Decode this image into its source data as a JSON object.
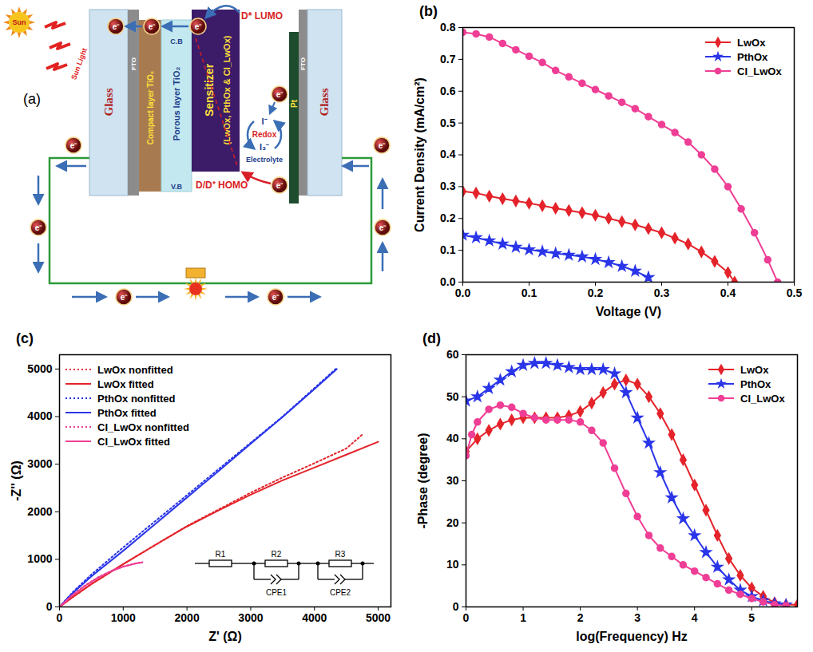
{
  "diagram": {
    "panel_label": "(a)",
    "sun": "Sun",
    "sunlight": "Sun Light",
    "glass": "Glass",
    "fto": "FTO",
    "compact": "Compact layer TiO₂",
    "porous": "Porous layer TiO₂",
    "sensitizer": "Sensitizer",
    "dyes": "(LwOx, PthOx & CI_LwOx)",
    "lumo": "D* LUMO",
    "homo": "D/D⁺ HOMO",
    "cb": "C.B",
    "vb": "V.B",
    "iodide": "I⁻",
    "redox": "Redox",
    "triiodide": "I₃⁻",
    "electrolyte": "Electrolyte",
    "pt": "Pt",
    "electron": "e⁻"
  },
  "chart_data": [
    {
      "type": "line",
      "panel_label": "(b)",
      "x_label": "Voltage (V)",
      "y_label": "Current Density (mA/cm²)",
      "xlim": [
        0,
        0.5
      ],
      "xticks": [
        {
          "value": 0,
          "label": "0.0"
        },
        {
          "value": 0.1,
          "label": "0.1"
        },
        {
          "value": 0.2,
          "label": "0.2"
        },
        {
          "value": 0.3,
          "label": "0.3"
        },
        {
          "value": 0.4,
          "label": "0.4"
        },
        {
          "value": 0.5,
          "label": "0.5"
        }
      ],
      "ylim": [
        0,
        0.8
      ],
      "yticks": [
        {
          "value": 0,
          "label": "0.0"
        },
        {
          "value": 0.1,
          "label": "0.1"
        },
        {
          "value": 0.2,
          "label": "0.2"
        },
        {
          "value": 0.3,
          "label": "0.3"
        },
        {
          "value": 0.4,
          "label": "0.4"
        },
        {
          "value": 0.5,
          "label": "0.5"
        },
        {
          "value": 0.6,
          "label": "0.6"
        },
        {
          "value": 0.7,
          "label": "0.7"
        },
        {
          "value": 0.8,
          "label": "0.8"
        }
      ],
      "grid": false,
      "legend": "top-right",
      "series": [
        {
          "name": "LwOx",
          "color": "#e4232a",
          "marker": "diamond",
          "line_style": "solid",
          "x": [
            0,
            0.02,
            0.04,
            0.06,
            0.08,
            0.1,
            0.12,
            0.14,
            0.16,
            0.18,
            0.2,
            0.22,
            0.24,
            0.26,
            0.28,
            0.3,
            0.32,
            0.34,
            0.36,
            0.38,
            0.4,
            0.41
          ],
          "values": [
            0.285,
            0.28,
            0.27,
            0.262,
            0.255,
            0.248,
            0.24,
            0.232,
            0.225,
            0.218,
            0.21,
            0.2,
            0.19,
            0.18,
            0.168,
            0.155,
            0.138,
            0.12,
            0.095,
            0.065,
            0.03,
            0
          ]
        },
        {
          "name": "PthOx",
          "color": "#2a35e8",
          "marker": "star",
          "line_style": "solid",
          "x": [
            0,
            0.02,
            0.04,
            0.06,
            0.08,
            0.1,
            0.12,
            0.14,
            0.16,
            0.18,
            0.2,
            0.22,
            0.24,
            0.26,
            0.28
          ],
          "values": [
            0.148,
            0.14,
            0.13,
            0.12,
            0.11,
            0.102,
            0.096,
            0.09,
            0.085,
            0.08,
            0.072,
            0.062,
            0.05,
            0.035,
            0.015
          ]
        },
        {
          "name": "CI_LwOx",
          "color": "#ef3e95",
          "marker": "circle",
          "line_style": "solid",
          "x": [
            0,
            0.02,
            0.04,
            0.06,
            0.08,
            0.1,
            0.12,
            0.14,
            0.16,
            0.18,
            0.2,
            0.22,
            0.24,
            0.26,
            0.28,
            0.3,
            0.32,
            0.34,
            0.36,
            0.38,
            0.4,
            0.42,
            0.44,
            0.46,
            0.475
          ],
          "values": [
            0.785,
            0.78,
            0.77,
            0.75,
            0.73,
            0.71,
            0.69,
            0.665,
            0.645,
            0.625,
            0.605,
            0.585,
            0.565,
            0.545,
            0.52,
            0.495,
            0.47,
            0.44,
            0.4,
            0.355,
            0.3,
            0.23,
            0.155,
            0.07,
            0
          ]
        }
      ]
    },
    {
      "type": "line",
      "panel_label": "(c)",
      "x_label": "Z' (Ω)",
      "y_label": "-Z'' (Ω)",
      "xlim": [
        0,
        5200
      ],
      "xticks": [
        0,
        1000,
        2000,
        3000,
        4000,
        5000
      ],
      "ylim": [
        0,
        5300
      ],
      "yticks": [
        0,
        1000,
        2000,
        3000,
        4000,
        5000
      ],
      "grid": false,
      "legend": "top-left",
      "circuit": [
        "R1",
        "R2",
        "CPE1",
        "R3",
        "CPE2"
      ],
      "series": [
        {
          "name": "LwOx nonfitted",
          "color": "#e4232a",
          "line_style": "dotted",
          "x": [
            0,
            200,
            500,
            1000,
            1500,
            2000,
            2500,
            3000,
            3500,
            4000,
            4500,
            4750
          ],
          "values": [
            0,
            200,
            480,
            900,
            1300,
            1700,
            2050,
            2400,
            2720,
            3020,
            3330,
            3620
          ]
        },
        {
          "name": "LwOx fitted",
          "color": "#e4232a",
          "line_style": "solid",
          "x": [
            0,
            200,
            500,
            1000,
            1500,
            2000,
            2500,
            3000,
            3500,
            4000,
            4500,
            5000
          ],
          "values": [
            0,
            200,
            480,
            900,
            1300,
            1690,
            2030,
            2360,
            2660,
            2930,
            3200,
            3470
          ]
        },
        {
          "name": "PthOx nonfitted",
          "color": "#2a35e8",
          "line_style": "dotted",
          "x": [
            0,
            200,
            500,
            1000,
            1500,
            2000,
            2500,
            3000,
            3500,
            4000,
            4350
          ],
          "values": [
            0,
            300,
            680,
            1250,
            1800,
            2350,
            2900,
            3450,
            4000,
            4600,
            5020
          ]
        },
        {
          "name": "PthOx fitted",
          "color": "#2a35e8",
          "line_style": "solid",
          "x": [
            0,
            200,
            500,
            1000,
            1500,
            2000,
            2500,
            3000,
            3500,
            4000,
            4350
          ],
          "values": [
            0,
            280,
            640,
            1180,
            1740,
            2300,
            2860,
            3430,
            3990,
            4580,
            5000
          ]
        },
        {
          "name": "CI_LwOx nonfitted",
          "color": "#ef3e95",
          "line_style": "dotted",
          "x": [
            0,
            200,
            400,
            600,
            800,
            1000,
            1200,
            1300
          ],
          "values": [
            0,
            250,
            450,
            620,
            750,
            850,
            920,
            940
          ]
        },
        {
          "name": "CI_LwOx fitted",
          "color": "#ef3e95",
          "line_style": "solid",
          "x": [
            0,
            200,
            400,
            600,
            800,
            1000,
            1200,
            1300
          ],
          "values": [
            0,
            240,
            440,
            610,
            745,
            845,
            915,
            935
          ]
        }
      ]
    },
    {
      "type": "line",
      "panel_label": "(d)",
      "x_label": "log(Frequency) Hz",
      "y_label": "-Phase (degree)",
      "xlim": [
        0,
        5.8
      ],
      "xticks": [
        0,
        1,
        2,
        3,
        4,
        5
      ],
      "ylim": [
        0,
        60
      ],
      "yticks": [
        0,
        10,
        20,
        30,
        40,
        50,
        60
      ],
      "grid": false,
      "legend": "top-right",
      "series": [
        {
          "name": "LwOx",
          "color": "#e4232a",
          "marker": "diamond",
          "line_style": "solid",
          "x": [
            0,
            0.2,
            0.4,
            0.6,
            0.8,
            1,
            1.2,
            1.4,
            1.6,
            1.8,
            2,
            2.2,
            2.4,
            2.6,
            2.8,
            3,
            3.2,
            3.4,
            3.6,
            3.8,
            4,
            4.2,
            4.4,
            4.6,
            4.8,
            5,
            5.2,
            5.4,
            5.6,
            5.8
          ],
          "values": [
            37,
            40,
            42,
            43.5,
            44.5,
            45,
            45,
            45,
            45,
            45.5,
            46.5,
            48.5,
            51,
            53,
            54,
            53,
            50,
            46,
            41,
            35,
            29,
            23,
            17,
            11.5,
            7.5,
            4.5,
            2.5,
            1,
            0.5,
            0.5
          ]
        },
        {
          "name": "PthOx",
          "color": "#2a35e8",
          "marker": "star",
          "line_style": "solid",
          "x": [
            0,
            0.2,
            0.4,
            0.6,
            0.8,
            1,
            1.2,
            1.4,
            1.6,
            1.8,
            2,
            2.2,
            2.4,
            2.6,
            2.8,
            3,
            3.2,
            3.4,
            3.6,
            3.8,
            4,
            4.2,
            4.4,
            4.6,
            4.8,
            5,
            5.2,
            5.4,
            5.6
          ],
          "values": [
            49,
            50,
            52,
            54,
            56,
            57.5,
            58,
            58,
            57.5,
            57,
            56.5,
            56.5,
            56.5,
            55.5,
            51,
            45,
            39,
            32,
            26,
            21,
            17,
            13,
            9.5,
            6.5,
            4,
            2.5,
            1.5,
            0.8,
            0.5
          ]
        },
        {
          "name": "CI_LwOx",
          "color": "#ef3e95",
          "marker": "circle",
          "line_style": "solid",
          "x": [
            0,
            0.1,
            0.2,
            0.4,
            0.6,
            0.8,
            1,
            1.2,
            1.4,
            1.6,
            1.8,
            2,
            2.2,
            2.4,
            2.6,
            2.8,
            3,
            3.2,
            3.4,
            3.6,
            3.8,
            4,
            4.2,
            4.4,
            4.6,
            4.8,
            5,
            5.2,
            5.4,
            5.6
          ],
          "values": [
            36,
            41,
            44,
            47,
            48,
            47.5,
            46,
            45,
            44.5,
            44.5,
            44.5,
            44,
            42,
            39,
            33,
            27,
            21.5,
            17,
            14,
            12,
            10,
            8.5,
            7,
            5.5,
            4,
            3,
            2,
            1.2,
            0.5,
            0.3
          ]
        }
      ]
    }
  ]
}
